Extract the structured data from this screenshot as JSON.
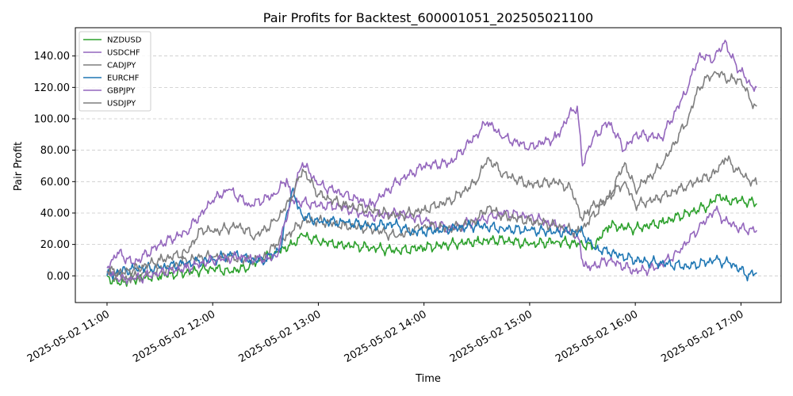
{
  "chart_data": {
    "type": "line",
    "title": "Pair Profits for Backtest_600001051_202505021100",
    "xlabel": "Time",
    "ylabel": "Pair Profit",
    "x_time_range_hours": [
      10.7,
      17.38
    ],
    "ylim": [
      -17,
      158
    ],
    "x_ticks": [
      {
        "value": 11,
        "label": "2025-05-02 11:00"
      },
      {
        "value": 12,
        "label": "2025-05-02 12:00"
      },
      {
        "value": 13,
        "label": "2025-05-02 13:00"
      },
      {
        "value": 14,
        "label": "2025-05-02 14:00"
      },
      {
        "value": 15,
        "label": "2025-05-02 15:00"
      },
      {
        "value": 16,
        "label": "2025-05-02 16:00"
      },
      {
        "value": 17,
        "label": "2025-05-02 17:00"
      }
    ],
    "y_ticks": [
      {
        "value": 0,
        "label": "0.00"
      },
      {
        "value": 20,
        "label": "20.00"
      },
      {
        "value": 40,
        "label": "40.00"
      },
      {
        "value": 60,
        "label": "60.00"
      },
      {
        "value": 80,
        "label": "80.00"
      },
      {
        "value": 100,
        "label": "100.00"
      },
      {
        "value": 120,
        "label": "120.00"
      },
      {
        "value": 140,
        "label": "140.00"
      }
    ],
    "grid": "horizontal-dashed",
    "legend_position": "top-left",
    "series": [
      {
        "name": "NZDUSD",
        "color": "#2ca02c",
        "x": [
          11.0,
          11.1,
          11.25,
          11.5,
          11.75,
          12.0,
          12.15,
          12.3,
          12.45,
          12.6,
          12.75,
          12.85,
          13.0,
          13.2,
          13.5,
          13.75,
          14.0,
          14.25,
          14.5,
          14.75,
          15.0,
          15.25,
          15.5,
          15.6,
          15.75,
          16.0,
          16.25,
          16.5,
          16.7,
          16.8,
          16.85,
          17.0,
          17.15
        ],
        "y": [
          0,
          -5,
          -2,
          0,
          2,
          5,
          3,
          5,
          10,
          15,
          20,
          26,
          22,
          20,
          18,
          16,
          18,
          20,
          22,
          23,
          20,
          22,
          20,
          18,
          32,
          30,
          34,
          40,
          45,
          52,
          48,
          48,
          46
        ]
      },
      {
        "name": "USDCHF",
        "color": "#9467bd",
        "x": [
          11.0,
          11.1,
          11.25,
          11.5,
          11.75,
          12.0,
          12.15,
          12.35,
          12.6,
          12.7,
          12.75,
          13.0,
          13.2,
          13.5,
          13.75,
          14.0,
          14.25,
          14.5,
          14.75,
          15.0,
          15.25,
          15.45,
          15.5,
          15.55,
          15.75,
          16.0,
          16.2,
          16.4,
          16.6,
          16.75,
          16.85,
          17.0,
          17.15
        ],
        "y": [
          5,
          15,
          8,
          20,
          28,
          48,
          55,
          45,
          52,
          62,
          48,
          45,
          44,
          38,
          40,
          35,
          30,
          35,
          40,
          38,
          32,
          26,
          10,
          5,
          10,
          3,
          5,
          15,
          30,
          42,
          35,
          30,
          29
        ]
      },
      {
        "name": "CADJPY",
        "color": "#7f7f7f",
        "x": [
          11.0,
          11.2,
          11.4,
          11.6,
          11.75,
          11.9,
          12.0,
          12.15,
          12.3,
          12.45,
          12.6,
          12.75,
          12.85,
          13.0,
          13.25,
          13.5,
          13.75,
          14.0,
          14.25,
          14.5,
          14.6,
          14.75,
          15.0,
          15.25,
          15.45,
          15.5,
          15.55,
          15.75,
          15.9,
          16.0,
          16.25,
          16.5,
          16.75,
          16.85,
          17.0,
          17.15
        ],
        "y": [
          2,
          -2,
          2,
          5,
          10,
          12,
          12,
          12,
          10,
          10,
          20,
          28,
          35,
          35,
          32,
          30,
          25,
          32,
          30,
          35,
          44,
          38,
          35,
          32,
          28,
          30,
          34,
          50,
          60,
          45,
          50,
          58,
          65,
          75,
          65,
          58
        ]
      },
      {
        "name": "EURCHF",
        "color": "#1f77b4",
        "x": [
          11.0,
          11.25,
          11.5,
          11.75,
          12.0,
          12.2,
          12.35,
          12.5,
          12.65,
          12.7,
          12.75,
          12.85,
          13.0,
          13.25,
          13.5,
          13.75,
          13.85,
          14.0,
          14.25,
          14.5,
          14.75,
          15.0,
          15.25,
          15.5,
          15.6,
          15.75,
          16.0,
          16.25,
          16.5,
          16.75,
          16.9,
          17.0,
          17.05,
          17.15
        ],
        "y": [
          0,
          5,
          5,
          8,
          10,
          14,
          10,
          10,
          18,
          40,
          54,
          38,
          35,
          34,
          32,
          33,
          28,
          28,
          30,
          32,
          30,
          29,
          28,
          28,
          18,
          15,
          10,
          8,
          6,
          10,
          8,
          4,
          0,
          2
        ]
      },
      {
        "name": "GBPJPY",
        "color": "#9467bd",
        "x": [
          11.0,
          11.1,
          11.25,
          11.5,
          11.75,
          12.0,
          12.25,
          12.4,
          12.6,
          12.75,
          12.85,
          13.0,
          13.25,
          13.5,
          13.75,
          14.0,
          14.25,
          14.5,
          14.6,
          14.75,
          15.0,
          15.25,
          15.4,
          15.45,
          15.5,
          15.55,
          15.6,
          15.75,
          15.9,
          16.0,
          16.25,
          16.5,
          16.6,
          16.75,
          16.85,
          16.9,
          17.0,
          17.1,
          17.15
        ],
        "y": [
          3,
          -2,
          -2,
          2,
          5,
          10,
          12,
          10,
          12,
          50,
          72,
          58,
          52,
          45,
          60,
          70,
          72,
          90,
          98,
          88,
          82,
          88,
          105,
          108,
          70,
          80,
          88,
          98,
          80,
          90,
          88,
          120,
          140,
          138,
          150,
          140,
          130,
          121,
          120
        ]
      },
      {
        "name": "USDJPY",
        "color": "#7f7f7f",
        "x": [
          11.0,
          11.15,
          11.3,
          11.5,
          11.75,
          11.9,
          12.0,
          12.25,
          12.4,
          12.6,
          12.75,
          12.85,
          13.0,
          13.25,
          13.5,
          13.75,
          14.0,
          14.25,
          14.5,
          14.6,
          14.75,
          15.0,
          15.25,
          15.4,
          15.5,
          15.55,
          15.75,
          15.9,
          16.0,
          16.25,
          16.5,
          16.6,
          16.75,
          16.9,
          17.0,
          17.1,
          17.15
        ],
        "y": [
          3,
          2,
          5,
          10,
          15,
          30,
          28,
          32,
          25,
          35,
          50,
          68,
          52,
          45,
          42,
          38,
          42,
          48,
          60,
          75,
          65,
          58,
          60,
          55,
          35,
          42,
          50,
          72,
          55,
          70,
          100,
          120,
          130,
          125,
          125,
          110,
          108
        ]
      }
    ]
  }
}
